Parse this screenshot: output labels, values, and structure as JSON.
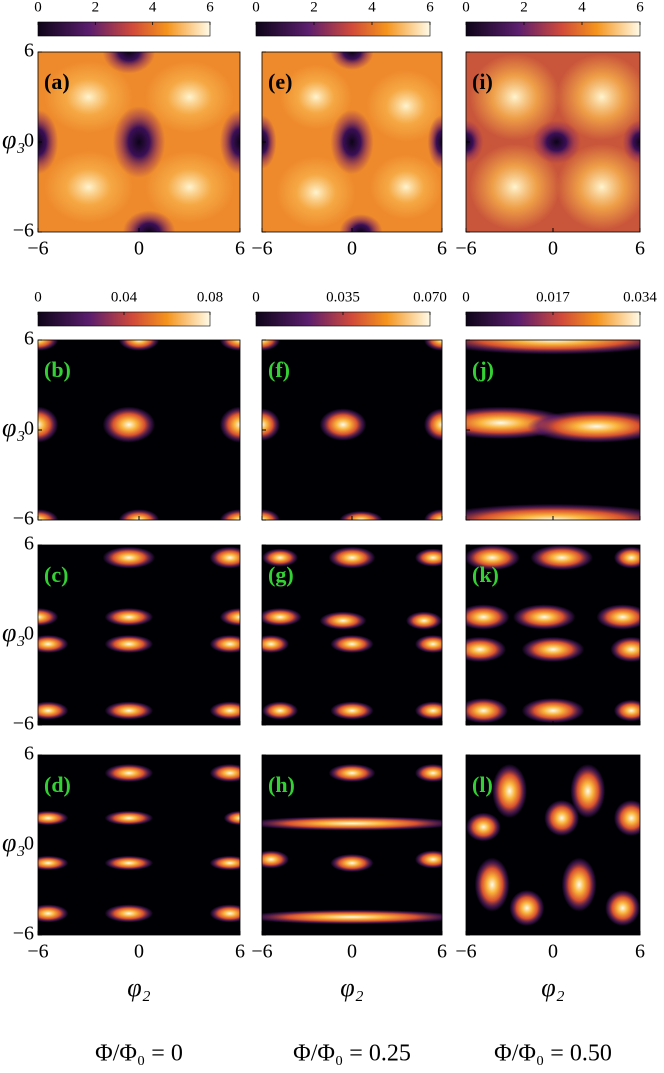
{
  "colorbars": [
    [
      {
        "lim": [
          0,
          6
        ],
        "ticks": [
          0,
          2,
          4,
          6
        ]
      },
      {
        "lim": [
          0,
          6
        ],
        "ticks": [
          0,
          2,
          4,
          6
        ]
      },
      {
        "lim": [
          0,
          6
        ],
        "ticks": [
          0,
          2,
          4,
          6
        ]
      }
    ],
    [
      {
        "lim": [
          0,
          0.08
        ],
        "ticks": [
          0,
          0.04,
          0.08
        ]
      },
      {
        "lim": [
          0,
          0.07
        ],
        "ticks": [
          0,
          0.035,
          {
            "value": 0.07,
            "label": "0.070"
          }
        ]
      },
      {
        "lim": [
          0,
          0.034
        ],
        "ticks": [
          0,
          0.017,
          0.034
        ]
      }
    ]
  ],
  "axes": {
    "lim": [
      -6,
      6
    ],
    "ticks": [
      {
        "value": -6,
        "label": "−6"
      },
      0,
      6
    ],
    "xlabel": "φ₂",
    "ylabel": "φ₃"
  },
  "panels": [
    [
      "(a)",
      "(e)",
      "(i)"
    ],
    [
      "(b)",
      "(f)",
      "(j)"
    ],
    [
      "(c)",
      "(g)",
      "(k)"
    ],
    [
      "(d)",
      "(h)",
      "(l)"
    ]
  ],
  "captions": [
    "Φ/Φ₀ = 0",
    "Φ/Φ₀ = 0.25",
    "Φ/Φ₀ = 0.50"
  ]
}
